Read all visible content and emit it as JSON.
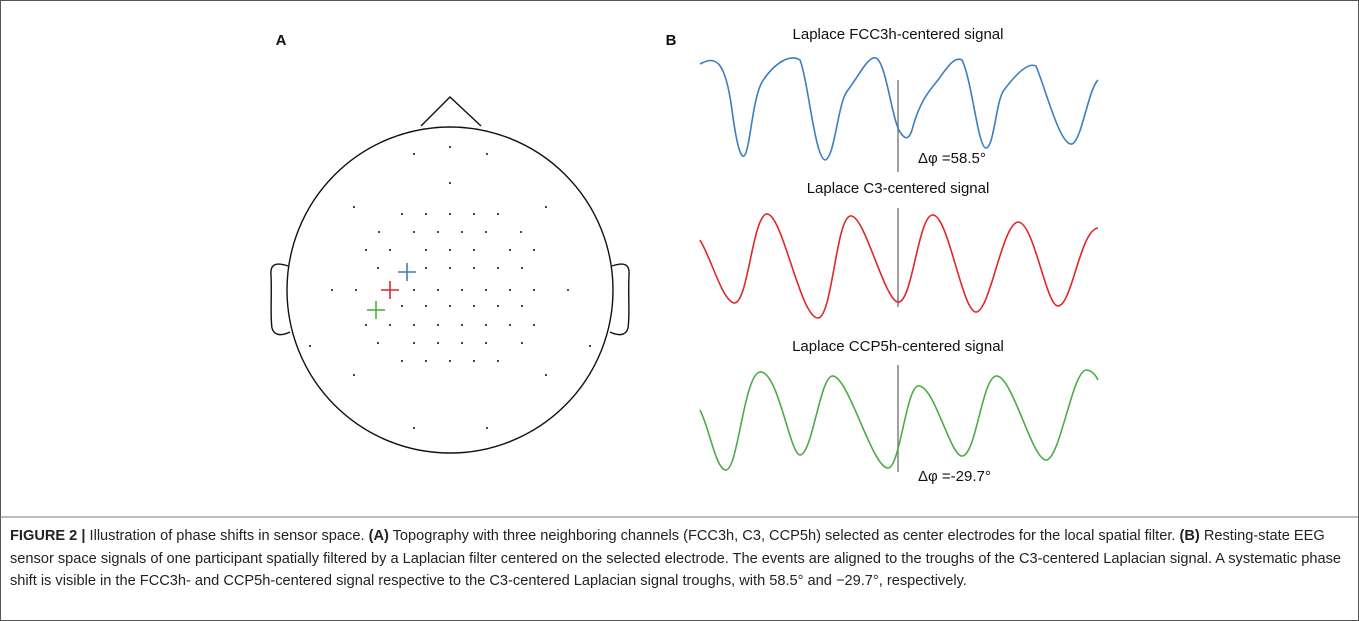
{
  "figure": {
    "panel_a_label": "A",
    "panel_b_label": "B",
    "signals": [
      {
        "title": "Laplace FCC3h-centered signal",
        "color": "#3a7ebf",
        "annotation": "Δφ =58.5°"
      },
      {
        "title": "Laplace C3-centered signal",
        "color": "#e0262b",
        "annotation": null
      },
      {
        "title": "Laplace CCP5h-centered signal",
        "color": "#4aac45",
        "annotation": "Δφ =-29.7°"
      }
    ]
  },
  "caption": {
    "label": "FIGURE 2 |",
    "intro": "Illustration of phase shifts in sensor space.",
    "a_label": "(A)",
    "a_text": "Topography with three neighboring channels (FCC3h, C3, CCP5h) selected as center electrodes for the local spatial filter.",
    "b_label": "(B)",
    "b_text": "Resting-state EEG sensor space signals of one participant spatially filtered by a Laplacian filter centered on the selected electrode. The events are aligned to the troughs of the C3-centered Laplacian signal. A systematic phase shift is visible in the FCC3h- and CCP5h-centered signal respective to the C3-centered Laplacian signal troughs, with 58.5° and −29.7°, respectively."
  }
}
